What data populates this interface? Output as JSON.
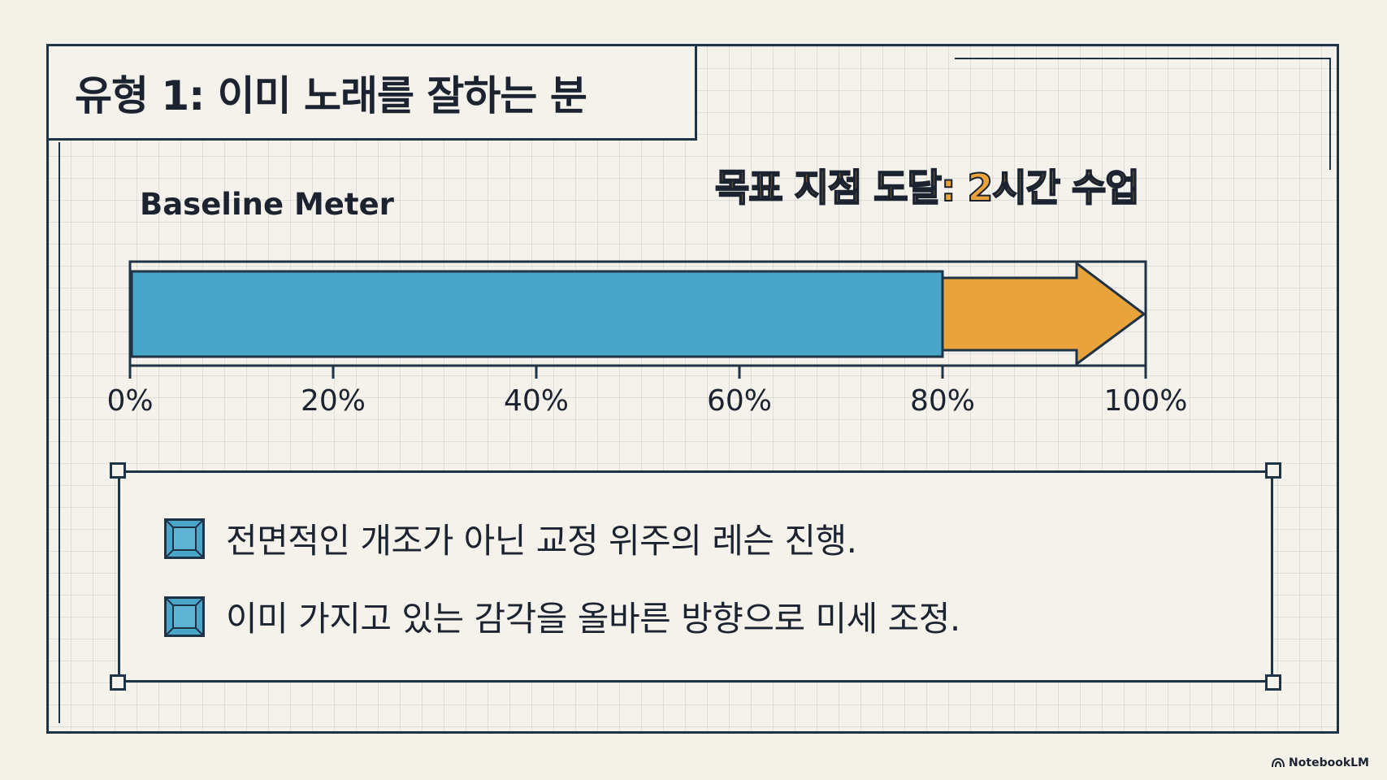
{
  "title": "유형 1: 이미 노래를 잘하는 분",
  "goal_label": "목표 지점 도달: 2시간 수업",
  "chart_data": {
    "type": "bar",
    "title": "Baseline Meter",
    "xlabel": "",
    "ylabel": "",
    "ticks": [
      "0%",
      "20%",
      "40%",
      "60%",
      "80%",
      "100%"
    ],
    "xlim": [
      0,
      100
    ],
    "series": [
      {
        "value": 80,
        "color": "#4aa6c8"
      },
      {
        "value_start": 80,
        "value_end": 100,
        "style": "arrow",
        "color": "#e8a33a"
      }
    ]
  },
  "notes": [
    "전면적인 개조가 아닌 교정 위주의 레슨 진행.",
    "이미 가지고 있는 감각을 올바른 방향으로 미세 조정."
  ],
  "brand": "NotebookLM",
  "colors": {
    "background": "#f3f1e8",
    "frame": "#1f3347",
    "baseline_fill": "#4aa6c8",
    "goal_arrow": "#e8a33a",
    "bullet": "#4aa6c8"
  },
  "icons": {
    "bullet": "beveled-square-icon",
    "brand": "notebooklm-logo-icon"
  }
}
